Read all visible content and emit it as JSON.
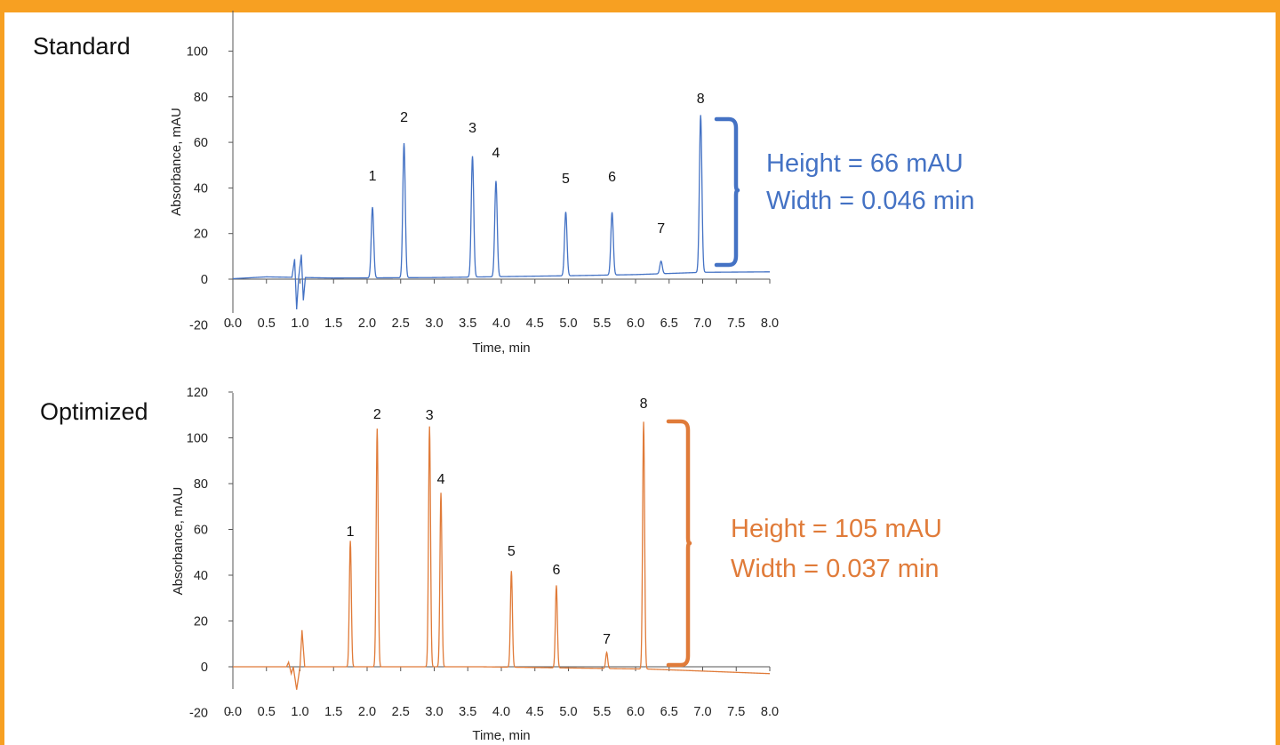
{
  "colors": {
    "frame": "#f7a022",
    "standard": "#4472c4",
    "optimized": "#e07b39"
  },
  "chart_data": [
    {
      "type": "line",
      "title": "Standard",
      "xlabel": "Time, min",
      "ylabel": "Absorbance, mAU",
      "xlim": [
        0,
        8
      ],
      "ylim": [
        -20,
        110
      ],
      "x_ticks": [
        "0.0",
        "0.5",
        "1.0",
        "1.5",
        "2.0",
        "2.5",
        "3.0",
        "3.5",
        "4.0",
        "4.5",
        "5.0",
        "5.5",
        "6.0",
        "6.5",
        "7.0",
        "7.5",
        "8.0"
      ],
      "y_ticks": [
        "-20",
        "0",
        "20",
        "40",
        "60",
        "80",
        "100"
      ],
      "grid": false,
      "series": [
        {
          "baseline": [
            [
              0,
              0.2
            ],
            [
              0.5,
              1
            ],
            [
              1.5,
              0.5
            ],
            [
              3,
              0.7
            ],
            [
              5,
              1.5
            ],
            [
              6,
              2
            ],
            [
              7,
              3
            ],
            [
              8,
              3.2
            ]
          ],
          "disturbance": [
            [
              0.88,
              0
            ],
            [
              0.92,
              8
            ],
            [
              0.95,
              -14
            ],
            [
              0.98,
              0
            ],
            [
              1.02,
              10
            ],
            [
              1.05,
              -10
            ],
            [
              1.08,
              0
            ]
          ],
          "peaks": [
            {
              "label": "1",
              "rt": 2.08,
              "height": 31,
              "width": 0.046
            },
            {
              "label": "2",
              "rt": 2.55,
              "height": 59,
              "width": 0.046
            },
            {
              "label": "3",
              "rt": 3.57,
              "height": 53,
              "width": 0.046
            },
            {
              "label": "4",
              "rt": 3.92,
              "height": 42,
              "width": 0.046
            },
            {
              "label": "5",
              "rt": 4.96,
              "height": 28,
              "width": 0.046
            },
            {
              "label": "6",
              "rt": 5.65,
              "height": 27.5,
              "width": 0.046
            },
            {
              "label": "7",
              "rt": 6.38,
              "height": 5.5,
              "width": 0.046
            },
            {
              "label": "8",
              "rt": 6.97,
              "height": 69,
              "width": 0.046
            }
          ]
        }
      ],
      "annotations": [
        "Height = 66 mAU",
        "Width = 0.046 min"
      ]
    },
    {
      "type": "line",
      "title": "Optimized",
      "xlabel": "Time, min",
      "ylabel": "Absorbance, mAU",
      "xlim": [
        0,
        8
      ],
      "ylim": [
        -20,
        120
      ],
      "x_ticks": [
        "0.0",
        "0.5",
        "1.0",
        "1.5",
        "2.0",
        "2.5",
        "3.0",
        "3.5",
        "4.0",
        "4.5",
        "5.0",
        "5.5",
        "6.0",
        "6.5",
        "7.0",
        "7.5",
        "8.0"
      ],
      "y_ticks": [
        "-20",
        "0",
        "20",
        "40",
        "60",
        "80",
        "100",
        "120"
      ],
      "grid": false,
      "series": [
        {
          "baseline": [
            [
              0,
              0
            ],
            [
              3.7,
              0
            ],
            [
              6.2,
              -1
            ],
            [
              8,
              -3
            ]
          ],
          "disturbance": [
            [
              0.8,
              0
            ],
            [
              0.83,
              2
            ],
            [
              0.87,
              -3
            ],
            [
              0.9,
              0
            ],
            [
              0.95,
              -10
            ],
            [
              1.0,
              0
            ],
            [
              1.03,
              16
            ],
            [
              1.07,
              0
            ]
          ],
          "peaks": [
            {
              "label": "1",
              "rt": 1.75,
              "height": 55,
              "width": 0.037
            },
            {
              "label": "2",
              "rt": 2.15,
              "height": 104,
              "width": 0.037
            },
            {
              "label": "3",
              "rt": 2.93,
              "height": 105,
              "width": 0.037
            },
            {
              "label": "4",
              "rt": 3.1,
              "height": 76,
              "width": 0.037
            },
            {
              "label": "5",
              "rt": 4.15,
              "height": 42,
              "width": 0.037
            },
            {
              "label": "6",
              "rt": 4.82,
              "height": 36,
              "width": 0.037
            },
            {
              "label": "7",
              "rt": 5.57,
              "height": 7,
              "width": 0.037
            },
            {
              "label": "8",
              "rt": 6.12,
              "height": 108,
              "width": 0.037
            }
          ]
        }
      ],
      "annotations": [
        "Height = 105 mAU",
        "Width = 0.037 min"
      ]
    }
  ]
}
